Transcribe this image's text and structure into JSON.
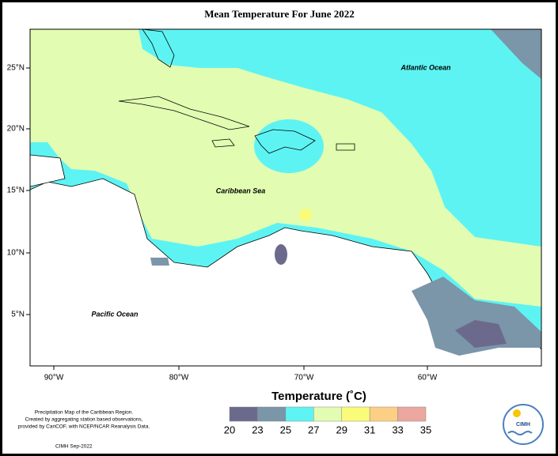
{
  "title": "Mean Temperature For June 2022",
  "ocean_labels": [
    "Atlantic Ocean",
    "Caribbean Sea",
    "Pacific Ocean"
  ],
  "lon_labels": [
    "90°W",
    "80°W",
    "70°W",
    "60°W"
  ],
  "lat_labels": [
    "25°N",
    "20°N",
    "15°N",
    "10°N",
    "5°N"
  ],
  "legend": {
    "title": "Temperature (˚C)",
    "ticks": [
      20,
      23,
      25,
      27,
      29,
      31,
      33,
      35
    ],
    "colors": [
      "#6c6a8c",
      "#7b95a9",
      "#5ef3f3",
      "#e2fdb2",
      "#fbfb7a",
      "#fbcf84",
      "#eba79f"
    ]
  },
  "notes": [
    "Precipitation Map of the Caribbean Region.",
    "Created by aggregating station based observations,",
    "provided by CariCOF, with NCEP/NCAR Reanalysis Data."
  ],
  "credit": "CIMH Sep-2022",
  "logo": "CIMH"
}
